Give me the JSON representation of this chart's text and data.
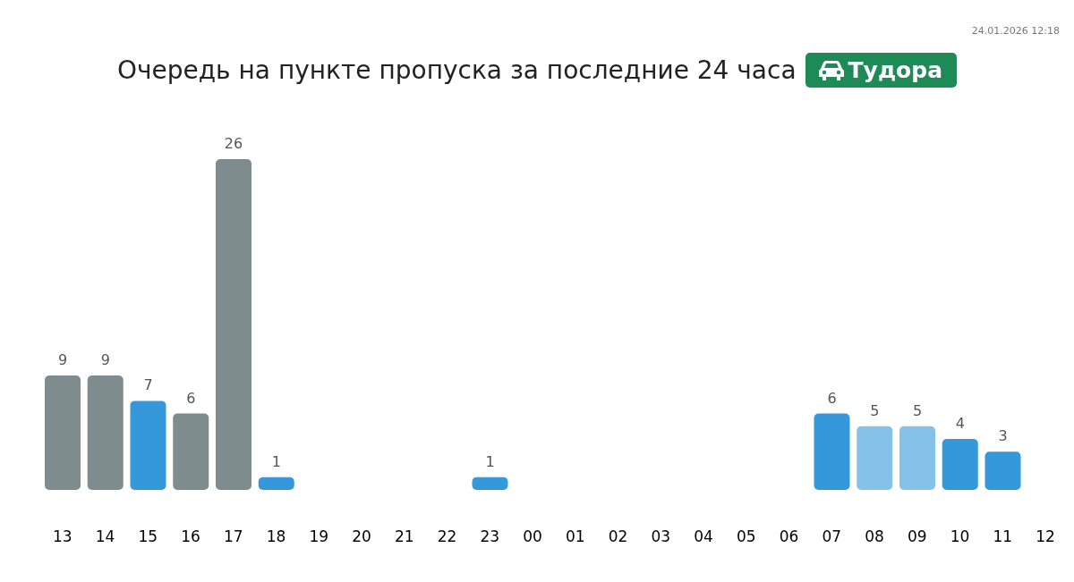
{
  "chart_data": {
    "type": "bar",
    "title": "Очередь на пункте пропуска за последние 24 часа",
    "subtitle": "Тудора",
    "annotations": [
      "24.01.2026 12:18"
    ],
    "categories": [
      "13",
      "14",
      "15",
      "16",
      "17",
      "18",
      "19",
      "20",
      "21",
      "22",
      "23",
      "00",
      "01",
      "02",
      "03",
      "04",
      "05",
      "06",
      "07",
      "08",
      "09",
      "10",
      "11",
      "12"
    ],
    "values": [
      9,
      9,
      7,
      6,
      26,
      1,
      null,
      null,
      null,
      null,
      1,
      null,
      null,
      null,
      null,
      null,
      null,
      null,
      6,
      5,
      5,
      4,
      3,
      null
    ],
    "colors": [
      "#7f8c8d",
      "#7f8c8d",
      "#3498db",
      "#7f8c8d",
      "#7f8c8d",
      "#3498db",
      null,
      null,
      null,
      null,
      "#3498db",
      null,
      null,
      null,
      null,
      null,
      null,
      null,
      "#3498db",
      "#85c1e9",
      "#85c1e9",
      "#3498db",
      "#3498db",
      null
    ],
    "data_labels": true,
    "grid": false,
    "legend": false
  }
}
